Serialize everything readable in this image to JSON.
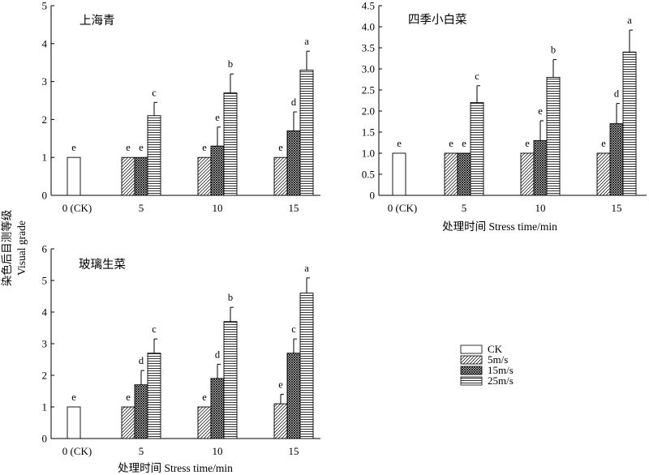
{
  "y_axis_label_cn": "染色后目测等级",
  "y_axis_label_en": "Visual grade",
  "x_axis_label": "处理时间  Stress time/min",
  "legend": [
    {
      "name": "CK",
      "pattern": "none"
    },
    {
      "name": "5m/s",
      "pattern": "diagonal"
    },
    {
      "name": "15m/s",
      "pattern": "crosshatch"
    },
    {
      "name": "25m/s",
      "pattern": "horizontal"
    }
  ],
  "chart_data": [
    {
      "type": "bar",
      "title": "上海青",
      "categories": [
        "0 (CK)",
        "5",
        "10",
        "15"
      ],
      "ylim": [
        0,
        5
      ],
      "yticks": [
        "0",
        "1",
        "2",
        "3",
        "4",
        "5"
      ],
      "series": [
        {
          "name": "CK",
          "values": [
            1.0,
            null,
            null,
            null
          ],
          "errors": [
            0,
            null,
            null,
            null
          ],
          "letters": [
            "e",
            null,
            null,
            null
          ]
        },
        {
          "name": "5m/s",
          "values": [
            null,
            1.0,
            1.0,
            1.0
          ],
          "errors": [
            null,
            0,
            0,
            0
          ],
          "letters": [
            null,
            "e",
            "e",
            "e"
          ]
        },
        {
          "name": "15m/s",
          "values": [
            null,
            1.0,
            1.3,
            1.7
          ],
          "errors": [
            null,
            0,
            0.5,
            0.5
          ],
          "letters": [
            null,
            "e",
            "e",
            "d"
          ]
        },
        {
          "name": "25m/s",
          "values": [
            null,
            2.1,
            2.7,
            3.3
          ],
          "errors": [
            null,
            0.35,
            0.5,
            0.5
          ],
          "letters": [
            null,
            "c",
            "b",
            "a"
          ]
        }
      ]
    },
    {
      "type": "bar",
      "title": "四季小白菜",
      "categories": [
        "0 (CK)",
        "5",
        "10",
        "15"
      ],
      "ylim": [
        0,
        4.5
      ],
      "yticks": [
        "0",
        "0.5",
        "1.0",
        "1.5",
        "2.0",
        "2.5",
        "3.0",
        "3.5",
        "4.0",
        "4.5"
      ],
      "series": [
        {
          "name": "CK",
          "values": [
            1.0,
            null,
            null,
            null
          ],
          "errors": [
            0,
            null,
            null,
            null
          ],
          "letters": [
            "e",
            null,
            null,
            null
          ]
        },
        {
          "name": "5m/s",
          "values": [
            null,
            1.0,
            1.0,
            1.0
          ],
          "errors": [
            null,
            0,
            0,
            0
          ],
          "letters": [
            null,
            "e",
            "e",
            "e"
          ]
        },
        {
          "name": "15m/s",
          "values": [
            null,
            1.0,
            1.3,
            1.7
          ],
          "errors": [
            null,
            0,
            0.47,
            0.48
          ],
          "letters": [
            null,
            "e",
            "e",
            "d"
          ]
        },
        {
          "name": "25m/s",
          "values": [
            null,
            2.2,
            2.8,
            3.4
          ],
          "errors": [
            null,
            0.4,
            0.42,
            0.52
          ],
          "letters": [
            null,
            "c",
            "b",
            "a"
          ]
        }
      ]
    },
    {
      "type": "bar",
      "title": "玻璃生菜",
      "categories": [
        "0 (CK)",
        "5",
        "10",
        "15"
      ],
      "ylim": [
        0,
        6
      ],
      "yticks": [
        "0",
        "1",
        "2",
        "3",
        "4",
        "5",
        "6"
      ],
      "series": [
        {
          "name": "CK",
          "values": [
            1.0,
            null,
            null,
            null
          ],
          "errors": [
            0,
            null,
            null,
            null
          ],
          "letters": [
            "e",
            null,
            null,
            null
          ]
        },
        {
          "name": "5m/s",
          "values": [
            null,
            1.0,
            1.0,
            1.1
          ],
          "errors": [
            null,
            0,
            0,
            0.3
          ],
          "letters": [
            null,
            "e",
            "e",
            "e"
          ]
        },
        {
          "name": "15m/s",
          "values": [
            null,
            1.7,
            1.9,
            2.7
          ],
          "errors": [
            null,
            0.45,
            0.45,
            0.45
          ],
          "letters": [
            null,
            "d",
            "d",
            "c"
          ]
        },
        {
          "name": "25m/s",
          "values": [
            null,
            2.7,
            3.7,
            4.6
          ],
          "errors": [
            null,
            0.45,
            0.45,
            0.48
          ],
          "letters": [
            null,
            "c",
            "b",
            "a"
          ]
        }
      ]
    }
  ]
}
